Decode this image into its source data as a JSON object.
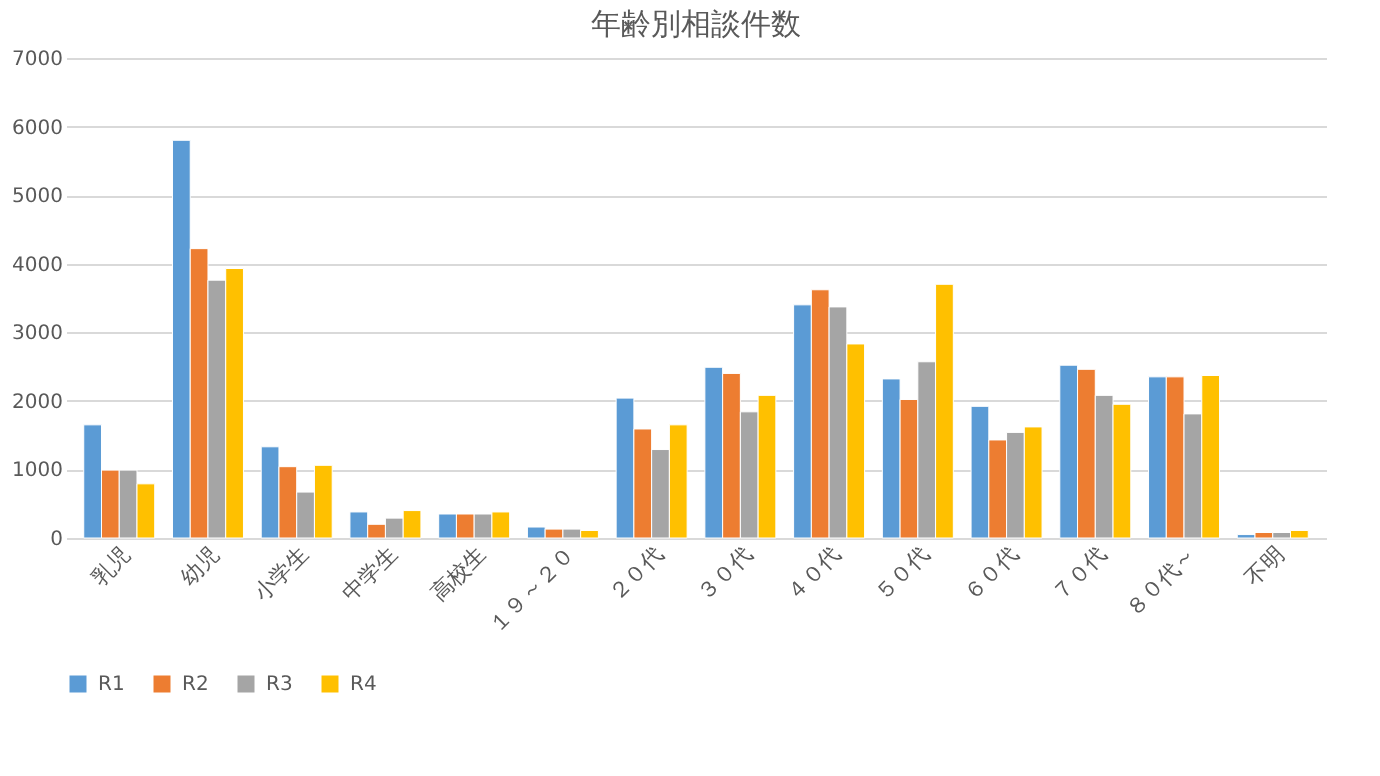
{
  "chart_data": {
    "type": "bar",
    "title": "年齢別相談件数",
    "categories": [
      "乳児",
      "幼児",
      "小学生",
      "中学生",
      "高校生",
      "１９～２０",
      "２０代",
      "３０代",
      "４０代",
      "５０代",
      "６０代",
      "７０代",
      "８０代～",
      "不明"
    ],
    "series": [
      {
        "name": "R1",
        "color": "#5b9bd5",
        "values": [
          1650,
          5800,
          1330,
          380,
          350,
          160,
          2040,
          2490,
          3400,
          2320,
          1920,
          2520,
          2350,
          50
        ]
      },
      {
        "name": "R2",
        "color": "#ed7d31",
        "values": [
          990,
          4220,
          1040,
          200,
          350,
          130,
          1590,
          2400,
          3620,
          2020,
          1430,
          2460,
          2350,
          80
        ]
      },
      {
        "name": "R3",
        "color": "#a5a5a5",
        "values": [
          990,
          3760,
          670,
          290,
          350,
          130,
          1290,
          1840,
          3370,
          2570,
          1540,
          2080,
          1810,
          80
        ]
      },
      {
        "name": "R4",
        "color": "#ffc000",
        "values": [
          790,
          3930,
          1060,
          400,
          380,
          110,
          1650,
          2080,
          2830,
          3700,
          1620,
          1950,
          2370,
          110
        ]
      }
    ],
    "ylim": [
      0,
      7000
    ],
    "yticks": [
      0,
      1000,
      2000,
      3000,
      4000,
      5000,
      6000,
      7000
    ],
    "grid": "y",
    "legend": "bottom"
  }
}
